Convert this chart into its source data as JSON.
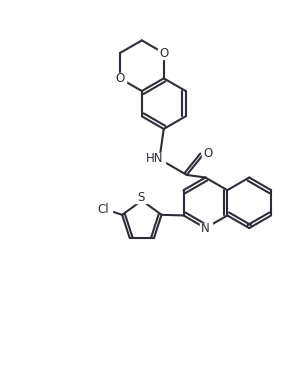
{
  "background_color": "#ffffff",
  "line_color": "#2d2d3a",
  "line_width": 1.5,
  "font_size": 8.5,
  "figsize": [
    2.93,
    3.74
  ],
  "dpi": 100,
  "xlim": [
    0,
    10
  ],
  "ylim": [
    0,
    12.8
  ]
}
